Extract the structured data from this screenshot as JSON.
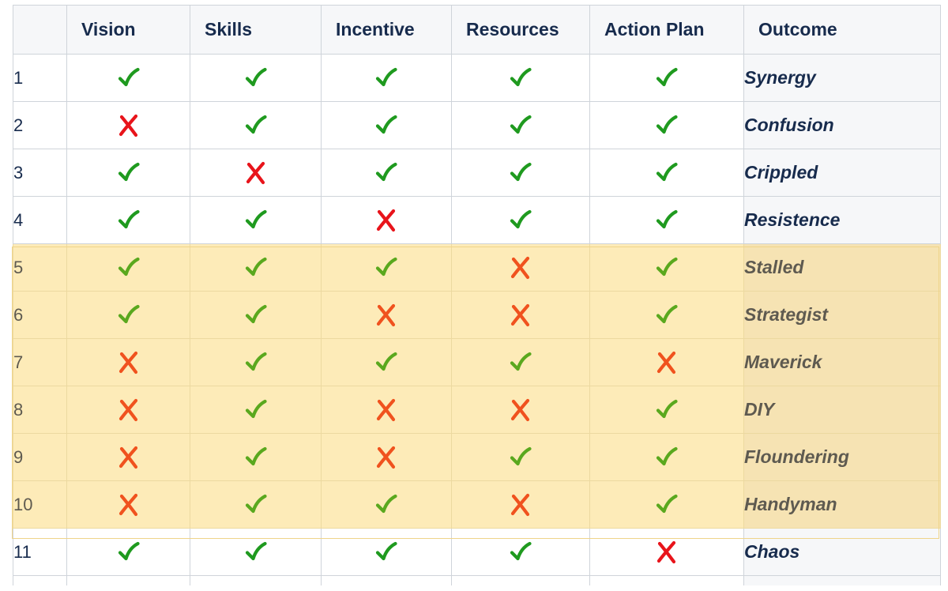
{
  "columns": [
    "",
    "Vision",
    "Skills",
    "Incentive",
    "Resources",
    "Action Plan",
    "Outcome"
  ],
  "rows": [
    {
      "num": "1",
      "marks": [
        true,
        true,
        true,
        true,
        true
      ],
      "outcome": "Synergy",
      "highlight": false
    },
    {
      "num": "2",
      "marks": [
        false,
        true,
        true,
        true,
        true
      ],
      "outcome": "Confusion",
      "highlight": false
    },
    {
      "num": "3",
      "marks": [
        true,
        false,
        true,
        true,
        true
      ],
      "outcome": "Crippled",
      "highlight": false
    },
    {
      "num": "4",
      "marks": [
        true,
        true,
        false,
        true,
        true
      ],
      "outcome": "Resistence",
      "highlight": false
    },
    {
      "num": "5",
      "marks": [
        true,
        true,
        true,
        false,
        true
      ],
      "outcome": "Stalled",
      "highlight": true
    },
    {
      "num": "6",
      "marks": [
        true,
        true,
        false,
        false,
        true
      ],
      "outcome": "Strategist",
      "highlight": true
    },
    {
      "num": "7",
      "marks": [
        false,
        true,
        true,
        true,
        false
      ],
      "outcome": "Maverick",
      "highlight": true
    },
    {
      "num": "8",
      "marks": [
        false,
        true,
        false,
        false,
        true
      ],
      "outcome": "DIY",
      "highlight": true
    },
    {
      "num": "9",
      "marks": [
        false,
        true,
        false,
        true,
        true
      ],
      "outcome": "Floundering",
      "highlight": true
    },
    {
      "num": "10",
      "marks": [
        false,
        true,
        true,
        false,
        true
      ],
      "outcome": "Handyman",
      "highlight": true
    },
    {
      "num": "11",
      "marks": [
        true,
        true,
        true,
        true,
        false
      ],
      "outcome": "Chaos",
      "highlight": false
    }
  ],
  "colors": {
    "check_normal": "#1f9a1f",
    "check_highlight": "#5aa81e",
    "cross_normal": "#e8141b",
    "cross_highlight": "#f0521e",
    "highlight_bg": "#fdebb8",
    "header_bg": "#f6f7f9"
  },
  "icons": {
    "yes": "check-icon",
    "no": "cross-icon"
  }
}
